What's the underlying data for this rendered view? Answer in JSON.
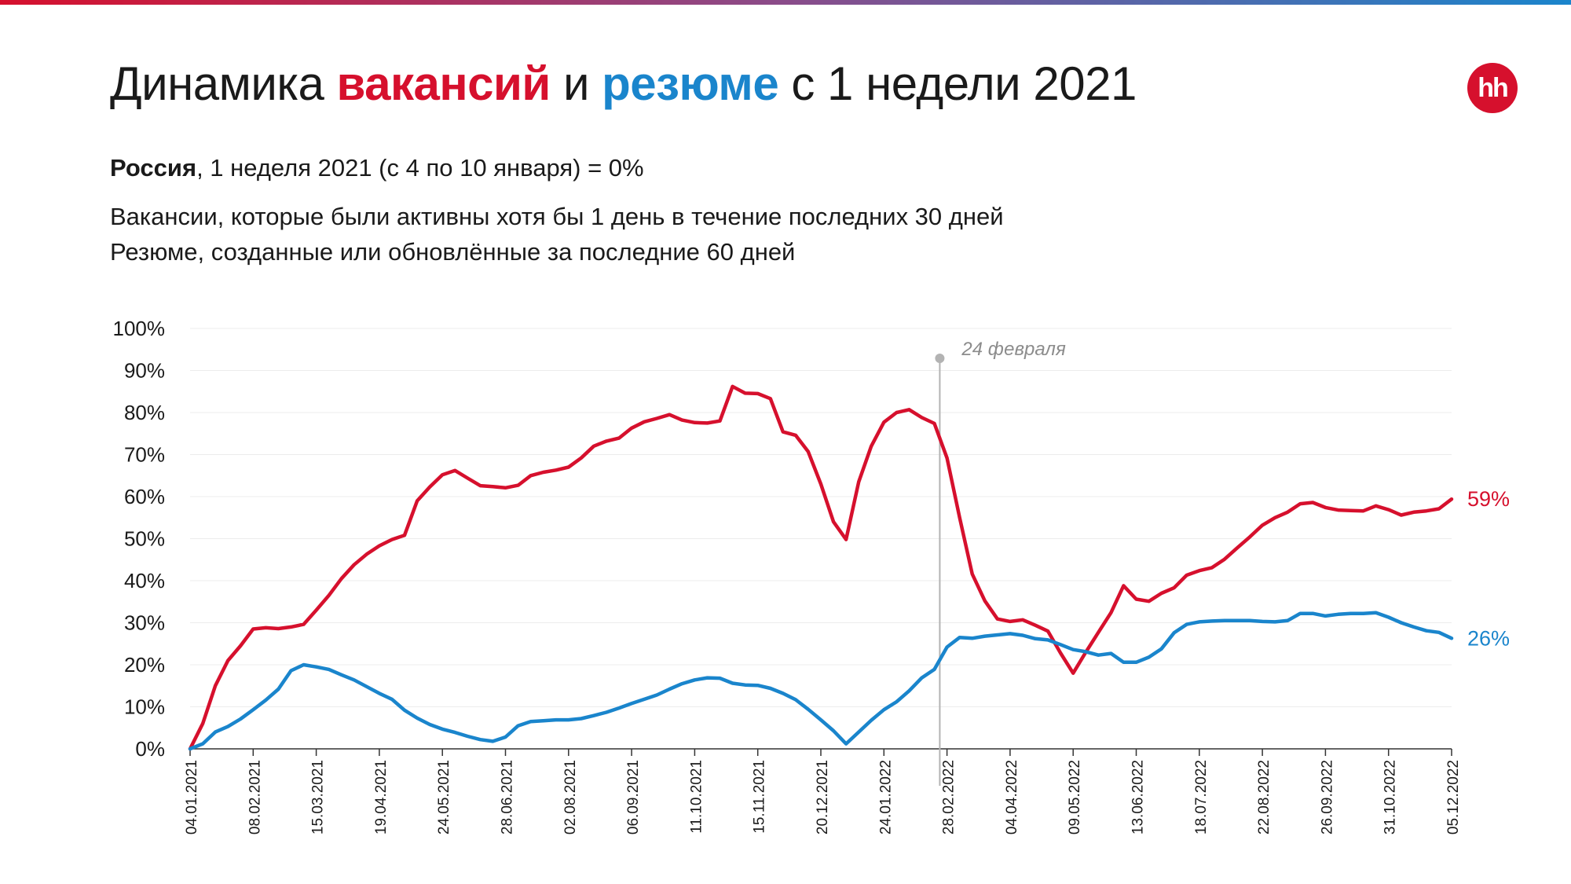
{
  "header": {
    "title_part1": "Динамика ",
    "title_vacancies": "вакансий",
    "title_part2": " и ",
    "title_resumes": "резюме",
    "title_part3": " с 1 недели 2021",
    "logo_text": "hh",
    "subtitle_bold": "Россия",
    "subtitle_rest": ", 1 неделя 2021 (с 4 по 10 января) = 0%",
    "note1": "Вакансии, которые были активны хотя бы 1 день в течение последних 30 дней",
    "note2": "Резюме, созданные или обновлённые за последние 60 дней"
  },
  "colors": {
    "vacancies": "#d6102d",
    "resumes": "#1a85cc",
    "marker": "#b3b3b3",
    "axis": "#333333"
  },
  "chart_data": {
    "type": "line",
    "ylim": [
      0,
      100
    ],
    "yticks": [
      "0%",
      "10%",
      "20%",
      "30%",
      "40%",
      "50%",
      "60%",
      "70%",
      "80%",
      "90%",
      "100%"
    ],
    "grid": true,
    "x_range": [
      "04.01.2021",
      "05.12.2022"
    ],
    "xticks": [
      "04.01.2021",
      "08.02.2021",
      "15.03.2021",
      "19.04.2021",
      "24.05.2021",
      "28.06.2021",
      "02.08.2021",
      "06.09.2021",
      "11.10.2021",
      "15.11.2021",
      "20.12.2021",
      "24.01.2022",
      "28.02.2022",
      "04.04.2022",
      "09.05.2022",
      "13.06.2022",
      "18.07.2022",
      "22.08.2022",
      "26.09.2022",
      "31.10.2022",
      "05.12.2022"
    ],
    "annotation": {
      "label": "24 февраля",
      "date": "24.02.2022"
    },
    "end_labels": {
      "vacancies": "59%",
      "resumes": "26%"
    },
    "series": [
      {
        "key": "vacancies",
        "points": [
          [
            "04.01.2021",
            0
          ],
          [
            "11.01.2021",
            6
          ],
          [
            "18.01.2021",
            15
          ],
          [
            "25.01.2021",
            21
          ],
          [
            "01.02.2021",
            24.5
          ],
          [
            "08.02.2021",
            28.5
          ],
          [
            "15.02.2021",
            28.8
          ],
          [
            "22.02.2021",
            28.6
          ],
          [
            "01.03.2021",
            29
          ],
          [
            "08.03.2021",
            29.6
          ],
          [
            "15.03.2021",
            33
          ],
          [
            "22.03.2021",
            36.5
          ],
          [
            "29.03.2021",
            40.5
          ],
          [
            "05.04.2021",
            43.8
          ],
          [
            "12.04.2021",
            46.3
          ],
          [
            "19.04.2021",
            48.3
          ],
          [
            "26.04.2021",
            49.8
          ],
          [
            "03.05.2021",
            50.8
          ],
          [
            "10.05.2021",
            59
          ],
          [
            "17.05.2021",
            62.3
          ],
          [
            "24.05.2021",
            65.2
          ],
          [
            "31.05.2021",
            66.2
          ],
          [
            "07.06.2021",
            64.4
          ],
          [
            "14.06.2021",
            62.6
          ],
          [
            "21.06.2021",
            62.4
          ],
          [
            "28.06.2021",
            62.1
          ],
          [
            "05.07.2021",
            62.7
          ],
          [
            "12.07.2021",
            65
          ],
          [
            "19.07.2021",
            65.8
          ],
          [
            "26.07.2021",
            66.3
          ],
          [
            "02.08.2021",
            67
          ],
          [
            "09.08.2021",
            69.2
          ],
          [
            "16.08.2021",
            72
          ],
          [
            "23.08.2021",
            73.2
          ],
          [
            "30.08.2021",
            73.9
          ],
          [
            "06.09.2021",
            76.3
          ],
          [
            "13.09.2021",
            77.8
          ],
          [
            "20.09.2021",
            78.6
          ],
          [
            "27.09.2021",
            79.5
          ],
          [
            "04.10.2021",
            78.2
          ],
          [
            "11.10.2021",
            77.6
          ],
          [
            "18.10.2021",
            77.5
          ],
          [
            "25.10.2021",
            78
          ],
          [
            "01.11.2021",
            86.2
          ],
          [
            "08.11.2021",
            84.6
          ],
          [
            "15.11.2021",
            84.5
          ],
          [
            "22.11.2021",
            83.3
          ],
          [
            "29.11.2021",
            75.4
          ],
          [
            "06.12.2021",
            74.6
          ],
          [
            "13.12.2021",
            70.7
          ],
          [
            "20.12.2021",
            63
          ],
          [
            "27.12.2021",
            54
          ],
          [
            "03.01.2022",
            49.8
          ],
          [
            "10.01.2022",
            63.5
          ],
          [
            "17.01.2022",
            72
          ],
          [
            "24.01.2022",
            77.7
          ],
          [
            "31.01.2022",
            80
          ],
          [
            "07.02.2022",
            80.7
          ],
          [
            "14.02.2022",
            78.8
          ],
          [
            "21.02.2022",
            77.4
          ],
          [
            "28.02.2022",
            69.2
          ],
          [
            "07.03.2022",
            55
          ],
          [
            "14.03.2022",
            41.6
          ],
          [
            "21.03.2022",
            35.2
          ],
          [
            "28.03.2022",
            30.9
          ],
          [
            "04.04.2022",
            30.3
          ],
          [
            "11.04.2022",
            30.7
          ],
          [
            "18.04.2022",
            29.4
          ],
          [
            "25.04.2022",
            28
          ],
          [
            "02.05.2022",
            22.8
          ],
          [
            "09.05.2022",
            18
          ],
          [
            "16.05.2022",
            23
          ],
          [
            "23.05.2022",
            27.7
          ],
          [
            "30.05.2022",
            32.4
          ],
          [
            "06.06.2022",
            38.8
          ],
          [
            "13.06.2022",
            35.6
          ],
          [
            "20.06.2022",
            35.1
          ],
          [
            "27.06.2022",
            37
          ],
          [
            "04.07.2022",
            38.3
          ],
          [
            "11.07.2022",
            41.3
          ],
          [
            "18.07.2022",
            42.4
          ],
          [
            "25.07.2022",
            43.1
          ],
          [
            "01.08.2022",
            45.1
          ],
          [
            "08.08.2022",
            47.8
          ],
          [
            "15.08.2022",
            50.4
          ],
          [
            "22.08.2022",
            53.2
          ],
          [
            "29.08.2022",
            55
          ],
          [
            "05.09.2022",
            56.3
          ],
          [
            "12.09.2022",
            58.3
          ],
          [
            "19.09.2022",
            58.6
          ],
          [
            "26.09.2022",
            57.4
          ],
          [
            "03.10.2022",
            56.8
          ],
          [
            "10.10.2022",
            56.7
          ],
          [
            "17.10.2022",
            56.6
          ],
          [
            "24.10.2022",
            57.8
          ],
          [
            "31.10.2022",
            56.9
          ],
          [
            "07.11.2022",
            55.6
          ],
          [
            "14.11.2022",
            56.3
          ],
          [
            "21.11.2022",
            56.6
          ],
          [
            "28.11.2022",
            57.1
          ],
          [
            "05.12.2022",
            59.4
          ]
        ]
      },
      {
        "key": "resumes",
        "points": [
          [
            "04.01.2021",
            0
          ],
          [
            "11.01.2021",
            1.2
          ],
          [
            "18.01.2021",
            4
          ],
          [
            "25.01.2021",
            5.3
          ],
          [
            "01.02.2021",
            7.1
          ],
          [
            "08.02.2021",
            9.3
          ],
          [
            "15.02.2021",
            11.6
          ],
          [
            "22.02.2021",
            14.2
          ],
          [
            "01.03.2021",
            18.6
          ],
          [
            "08.03.2021",
            20
          ],
          [
            "15.03.2021",
            19.5
          ],
          [
            "22.03.2021",
            18.9
          ],
          [
            "29.03.2021",
            17.6
          ],
          [
            "05.04.2021",
            16.4
          ],
          [
            "12.04.2021",
            14.8
          ],
          [
            "19.04.2021",
            13.2
          ],
          [
            "26.04.2021",
            11.8
          ],
          [
            "03.05.2021",
            9.2
          ],
          [
            "10.05.2021",
            7.3
          ],
          [
            "17.05.2021",
            5.8
          ],
          [
            "24.05.2021",
            4.7
          ],
          [
            "31.05.2021",
            3.9
          ],
          [
            "07.06.2021",
            3
          ],
          [
            "14.06.2021",
            2.2
          ],
          [
            "21.06.2021",
            1.8
          ],
          [
            "28.06.2021",
            2.8
          ],
          [
            "05.07.2021",
            5.5
          ],
          [
            "12.07.2021",
            6.5
          ],
          [
            "19.07.2021",
            6.7
          ],
          [
            "26.07.2021",
            6.9
          ],
          [
            "02.08.2021",
            6.9
          ],
          [
            "09.08.2021",
            7.2
          ],
          [
            "16.08.2021",
            7.9
          ],
          [
            "23.08.2021",
            8.7
          ],
          [
            "30.08.2021",
            9.7
          ],
          [
            "06.09.2021",
            10.8
          ],
          [
            "13.09.2021",
            11.8
          ],
          [
            "20.09.2021",
            12.8
          ],
          [
            "27.09.2021",
            14.2
          ],
          [
            "04.10.2021",
            15.5
          ],
          [
            "11.10.2021",
            16.4
          ],
          [
            "18.10.2021",
            16.9
          ],
          [
            "25.10.2021",
            16.8
          ],
          [
            "01.11.2021",
            15.6
          ],
          [
            "08.11.2021",
            15.2
          ],
          [
            "15.11.2021",
            15.1
          ],
          [
            "22.11.2021",
            14.4
          ],
          [
            "29.11.2021",
            13.2
          ],
          [
            "06.12.2021",
            11.7
          ],
          [
            "13.12.2021",
            9.4
          ],
          [
            "20.12.2021",
            6.9
          ],
          [
            "27.12.2021",
            4.3
          ],
          [
            "03.01.2022",
            1.2
          ],
          [
            "10.01.2022",
            4
          ],
          [
            "17.01.2022",
            6.8
          ],
          [
            "24.01.2022",
            9.3
          ],
          [
            "31.01.2022",
            11.2
          ],
          [
            "07.02.2022",
            13.8
          ],
          [
            "14.02.2022",
            16.9
          ],
          [
            "21.02.2022",
            18.9
          ],
          [
            "28.02.2022",
            24.2
          ],
          [
            "07.03.2022",
            26.5
          ],
          [
            "14.03.2022",
            26.3
          ],
          [
            "21.03.2022",
            26.8
          ],
          [
            "28.03.2022",
            27.1
          ],
          [
            "04.04.2022",
            27.4
          ],
          [
            "11.04.2022",
            27
          ],
          [
            "18.04.2022",
            26.2
          ],
          [
            "25.04.2022",
            25.9
          ],
          [
            "02.05.2022",
            24.8
          ],
          [
            "09.05.2022",
            23.6
          ],
          [
            "16.05.2022",
            23.1
          ],
          [
            "23.05.2022",
            22.3
          ],
          [
            "30.05.2022",
            22.7
          ],
          [
            "06.06.2022",
            20.6
          ],
          [
            "13.06.2022",
            20.6
          ],
          [
            "20.06.2022",
            21.8
          ],
          [
            "27.06.2022",
            23.8
          ],
          [
            "04.07.2022",
            27.6
          ],
          [
            "11.07.2022",
            29.6
          ],
          [
            "18.07.2022",
            30.2
          ],
          [
            "25.07.2022",
            30.4
          ],
          [
            "01.08.2022",
            30.5
          ],
          [
            "08.08.2022",
            30.5
          ],
          [
            "15.08.2022",
            30.5
          ],
          [
            "22.08.2022",
            30.3
          ],
          [
            "29.08.2022",
            30.2
          ],
          [
            "05.09.2022",
            30.5
          ],
          [
            "12.09.2022",
            32.2
          ],
          [
            "19.09.2022",
            32.2
          ],
          [
            "26.09.2022",
            31.6
          ],
          [
            "03.10.2022",
            32
          ],
          [
            "10.10.2022",
            32.2
          ],
          [
            "17.10.2022",
            32.2
          ],
          [
            "24.10.2022",
            32.4
          ],
          [
            "31.10.2022",
            31.3
          ],
          [
            "07.11.2022",
            30
          ],
          [
            "14.11.2022",
            29
          ],
          [
            "21.11.2022",
            28.1
          ],
          [
            "28.11.2022",
            27.7
          ],
          [
            "05.12.2022",
            26.3
          ]
        ]
      }
    ]
  }
}
